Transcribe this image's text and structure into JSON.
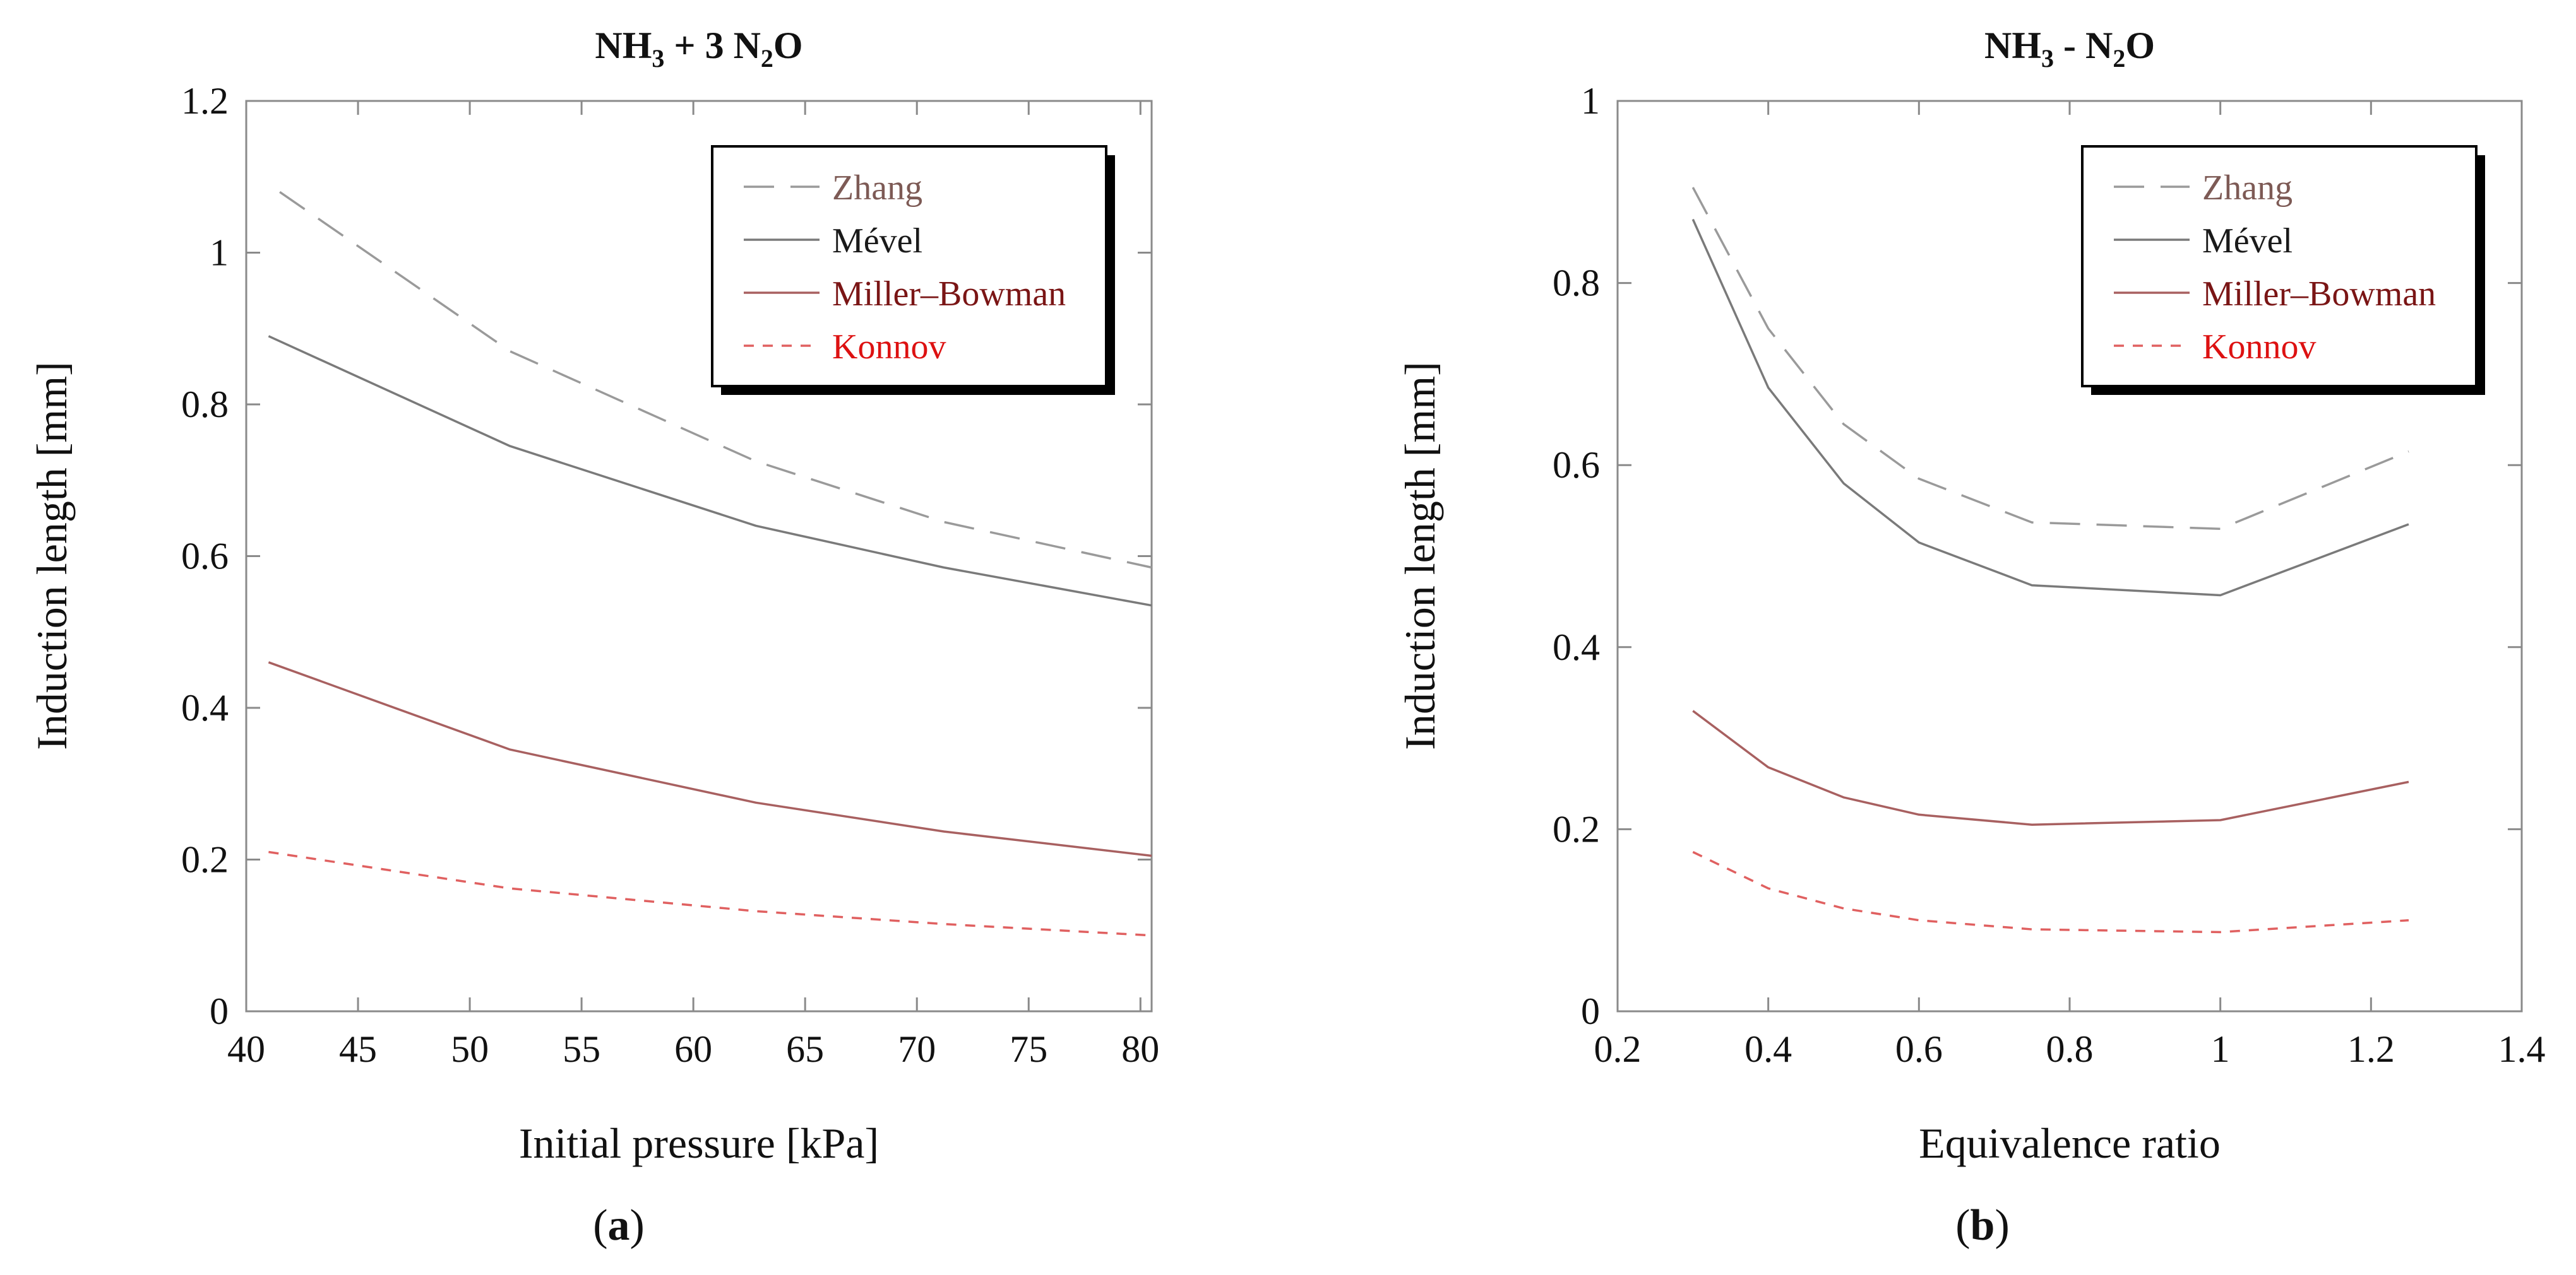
{
  "chart_data": [
    {
      "type": "line",
      "title_parts": [
        "NH",
        "3",
        " + 3 N",
        "2",
        "O"
      ],
      "xlabel": "Initial pressure [kPa]",
      "ylabel": "Induction length [mm]",
      "xlim": [
        40,
        80.5
      ],
      "ylim": [
        0,
        1.2
      ],
      "xticks": [
        40,
        45,
        50,
        55,
        60,
        65,
        70,
        75,
        80
      ],
      "yticks": [
        0,
        0.2,
        0.4,
        0.6,
        0.8,
        1,
        1.2
      ],
      "xtick_labels": [
        "40",
        "45",
        "50",
        "55",
        "60",
        "65",
        "70",
        "75",
        "80"
      ],
      "ytick_labels": [
        "0",
        "0.2",
        "0.4",
        "0.6",
        "0.8",
        "1",
        "1.2"
      ],
      "legend_position": "top-right",
      "panel_label": [
        "(",
        "a",
        ")"
      ],
      "series": [
        {
          "name": "Zhang",
          "style": "dashed-long",
          "color": "#9a9a9a",
          "label_color": "#7d5a55",
          "x": [
            41.5,
            51.8,
            62.8,
            71.2,
            80.5
          ],
          "y": [
            1.08,
            0.87,
            0.725,
            0.645,
            0.585
          ]
        },
        {
          "name": "Mével",
          "style": "solid",
          "color": "#7a7a7a",
          "label_color": "#1a1a1a",
          "x": [
            41,
            51.8,
            62.8,
            71.2,
            80.5
          ],
          "y": [
            0.89,
            0.745,
            0.64,
            0.585,
            0.535
          ]
        },
        {
          "name": "Miller–Bowman",
          "style": "solid",
          "color": "#a86060",
          "label_color": "#7a1515",
          "x": [
            41,
            51.8,
            62.8,
            71.2,
            80.5
          ],
          "y": [
            0.46,
            0.345,
            0.275,
            0.237,
            0.205
          ]
        },
        {
          "name": "Konnov",
          "style": "dashed-short",
          "color": "#e06060",
          "label_color": "#dd1111",
          "x": [
            41,
            51.8,
            62.8,
            71.2,
            80.5
          ],
          "y": [
            0.21,
            0.162,
            0.132,
            0.115,
            0.1
          ]
        }
      ]
    },
    {
      "type": "line",
      "title_parts": [
        "NH",
        "3",
        " - N",
        "2",
        "O"
      ],
      "xlabel": "Equivalence ratio",
      "ylabel": "Induction length [mm]",
      "xlim": [
        0.2,
        1.4
      ],
      "ylim": [
        0,
        1
      ],
      "xticks": [
        0.2,
        0.4,
        0.6,
        0.8,
        1,
        1.2,
        1.4
      ],
      "yticks": [
        0,
        0.2,
        0.4,
        0.6,
        0.8,
        1
      ],
      "xtick_labels": [
        "0.2",
        "0.4",
        "0.6",
        "0.8",
        "1",
        "1.2",
        "1.4"
      ],
      "ytick_labels": [
        "0",
        "0.2",
        "0.4",
        "0.6",
        "0.8",
        "1"
      ],
      "legend_position": "top-right",
      "panel_label": [
        "(",
        "b",
        ")"
      ],
      "series": [
        {
          "name": "Zhang",
          "style": "dashed-long",
          "color": "#9a9a9a",
          "label_color": "#7d5a55",
          "x": [
            0.3,
            0.4,
            0.5,
            0.6,
            0.75,
            1.0,
            1.25
          ],
          "y": [
            0.905,
            0.75,
            0.645,
            0.585,
            0.537,
            0.53,
            0.615
          ]
        },
        {
          "name": "Mével",
          "style": "solid",
          "color": "#7a7a7a",
          "label_color": "#1a1a1a",
          "x": [
            0.3,
            0.4,
            0.5,
            0.6,
            0.75,
            1.0,
            1.25
          ],
          "y": [
            0.87,
            0.685,
            0.58,
            0.515,
            0.468,
            0.457,
            0.535
          ]
        },
        {
          "name": "Miller–Bowman",
          "style": "solid",
          "color": "#a86060",
          "label_color": "#7a1515",
          "x": [
            0.3,
            0.4,
            0.5,
            0.6,
            0.75,
            1.0,
            1.25
          ],
          "y": [
            0.33,
            0.268,
            0.235,
            0.216,
            0.205,
            0.21,
            0.252
          ]
        },
        {
          "name": "Konnov",
          "style": "dashed-short",
          "color": "#e06060",
          "label_color": "#dd1111",
          "x": [
            0.3,
            0.4,
            0.5,
            0.6,
            0.75,
            1.0,
            1.25
          ],
          "y": [
            0.175,
            0.135,
            0.113,
            0.1,
            0.09,
            0.087,
            0.1
          ]
        }
      ]
    }
  ]
}
